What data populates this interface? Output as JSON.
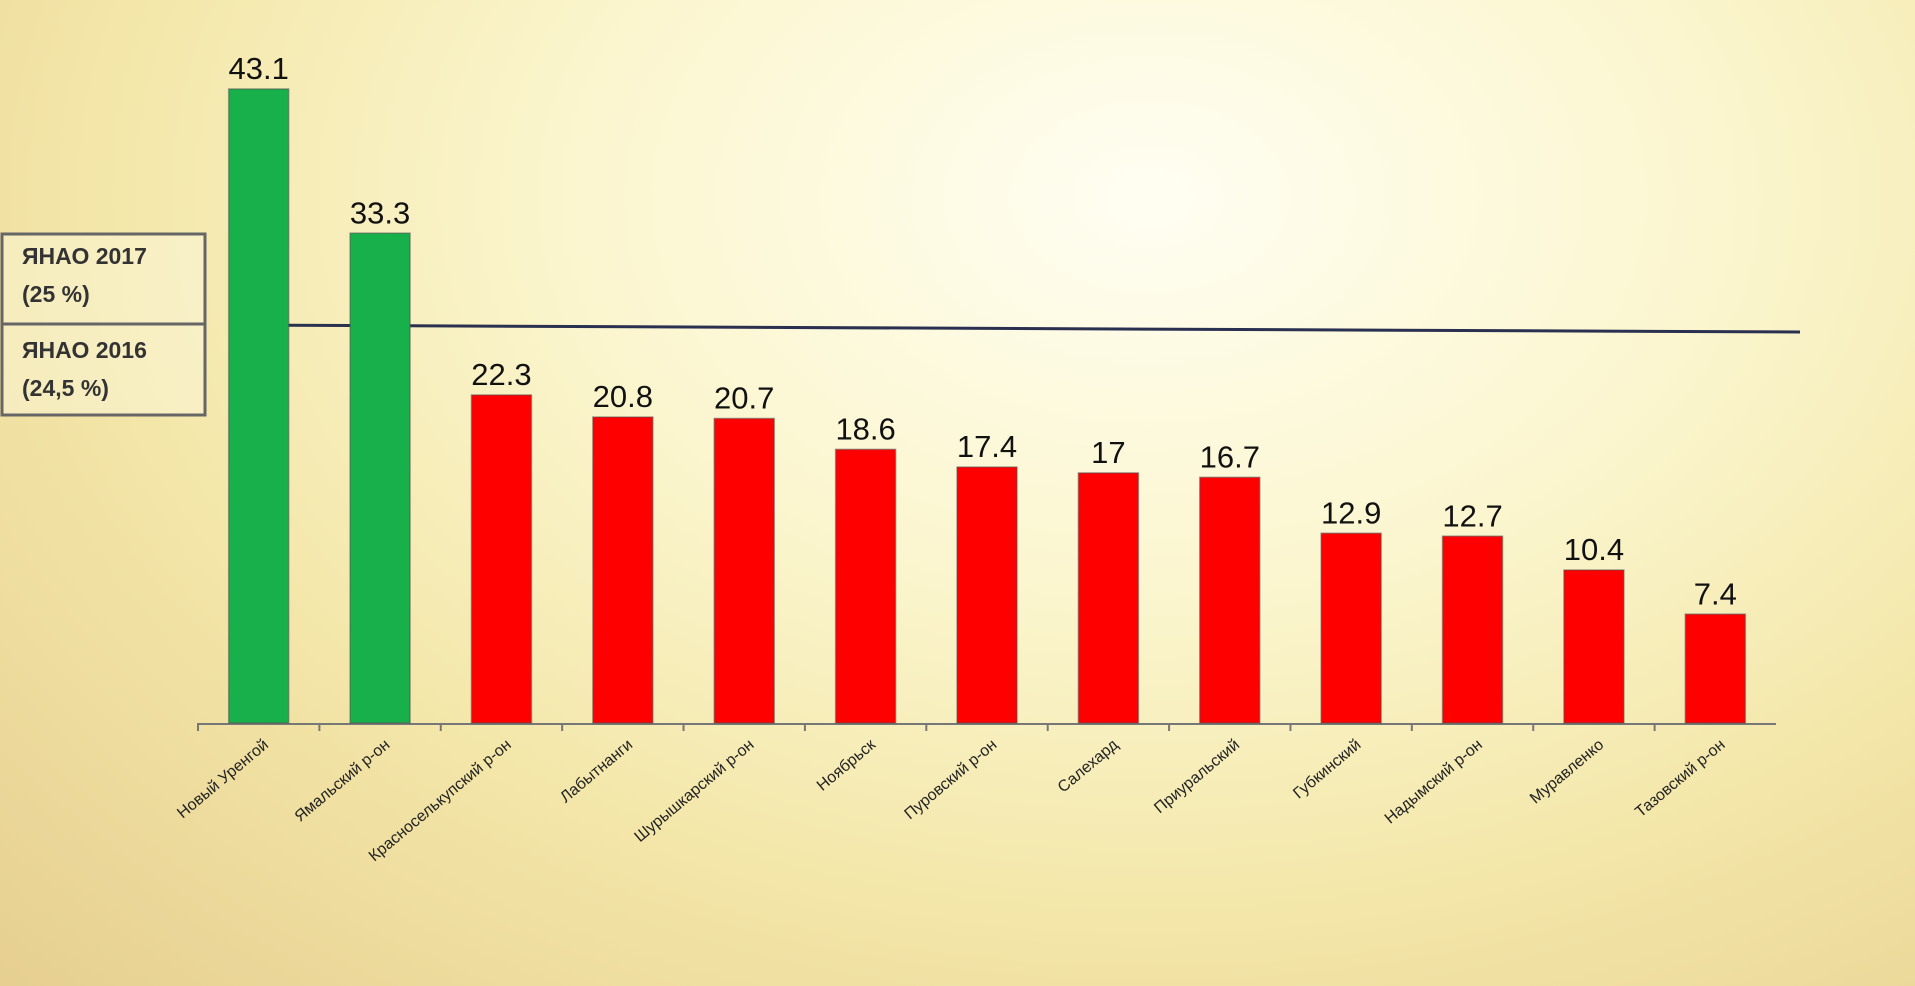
{
  "chart_data": {
    "type": "bar",
    "categories": [
      "Новый Уренгой",
      "Ямальский р-он",
      "Красноселькупский р-он",
      "Лабытнанги",
      "Шурышкарский р-он",
      "Ноябрьск",
      "Пуровский р-он",
      "Салехард",
      "Приуральский",
      "Губкинский",
      "Надымский р-он",
      "Муравленко",
      "Тазовский р-он"
    ],
    "values": [
      43.1,
      33.3,
      22.3,
      20.8,
      20.7,
      18.6,
      17.4,
      17,
      16.7,
      12.9,
      12.7,
      10.4,
      7.4
    ],
    "colors": [
      "#18b04a",
      "#18b04a",
      "#ff0000",
      "#ff0000",
      "#ff0000",
      "#ff0000",
      "#ff0000",
      "#ff0000",
      "#ff0000",
      "#ff0000",
      "#ff0000",
      "#ff0000",
      "#ff0000"
    ],
    "ylim": [
      0,
      45
    ],
    "annotations": [
      "ЯНАО 2017",
      "(25 %)",
      "ЯНАО 2016",
      "(24,5 %)"
    ]
  }
}
